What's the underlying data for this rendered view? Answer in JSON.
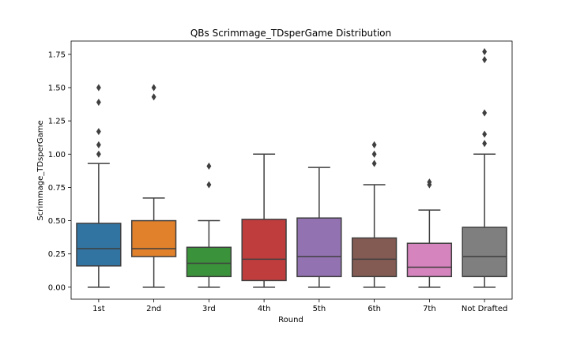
{
  "chart_data": {
    "type": "box",
    "title": "QBs Scrimmage_TDsperGame Distribution",
    "xlabel": "Round",
    "ylabel": "Scrimmage_TDsperGame",
    "ylim": [
      -0.09,
      1.85
    ],
    "yticks": [
      0.0,
      0.25,
      0.5,
      0.75,
      1.0,
      1.25,
      1.5,
      1.75
    ],
    "ytick_labels": [
      "0.00",
      "0.25",
      "0.50",
      "0.75",
      "1.00",
      "1.25",
      "1.50",
      "1.75"
    ],
    "grid": false,
    "categories": [
      "1st",
      "2nd",
      "3rd",
      "4th",
      "5th",
      "6th",
      "7th",
      "Not Drafted"
    ],
    "colors": [
      "#3274a1",
      "#e1812c",
      "#3a923a",
      "#c03d3e",
      "#9372b2",
      "#845b53",
      "#d684bd",
      "#7f7f7f"
    ],
    "boxes": [
      {
        "whisker_low": 0.0,
        "q1": 0.16,
        "median": 0.29,
        "q3": 0.48,
        "whisker_high": 0.93,
        "outliers": [
          1.0,
          1.07,
          1.17,
          1.39,
          1.5
        ]
      },
      {
        "whisker_low": 0.0,
        "q1": 0.23,
        "median": 0.29,
        "q3": 0.5,
        "whisker_high": 0.67,
        "outliers": [
          1.43,
          1.5
        ]
      },
      {
        "whisker_low": 0.0,
        "q1": 0.08,
        "median": 0.18,
        "q3": 0.3,
        "whisker_high": 0.5,
        "outliers": [
          0.77,
          0.91
        ]
      },
      {
        "whisker_low": 0.0,
        "q1": 0.05,
        "median": 0.21,
        "q3": 0.51,
        "whisker_high": 1.0,
        "outliers": []
      },
      {
        "whisker_low": 0.0,
        "q1": 0.08,
        "median": 0.23,
        "q3": 0.52,
        "whisker_high": 0.9,
        "outliers": []
      },
      {
        "whisker_low": 0.0,
        "q1": 0.08,
        "median": 0.21,
        "q3": 0.37,
        "whisker_high": 0.77,
        "outliers": [
          0.93,
          1.0,
          1.07
        ]
      },
      {
        "whisker_low": 0.0,
        "q1": 0.08,
        "median": 0.15,
        "q3": 0.33,
        "whisker_high": 0.58,
        "outliers": [
          0.77,
          0.79
        ]
      },
      {
        "whisker_low": 0.0,
        "q1": 0.08,
        "median": 0.23,
        "q3": 0.45,
        "whisker_high": 1.0,
        "outliers": [
          1.08,
          1.15,
          1.31,
          1.71,
          1.77
        ]
      }
    ]
  }
}
